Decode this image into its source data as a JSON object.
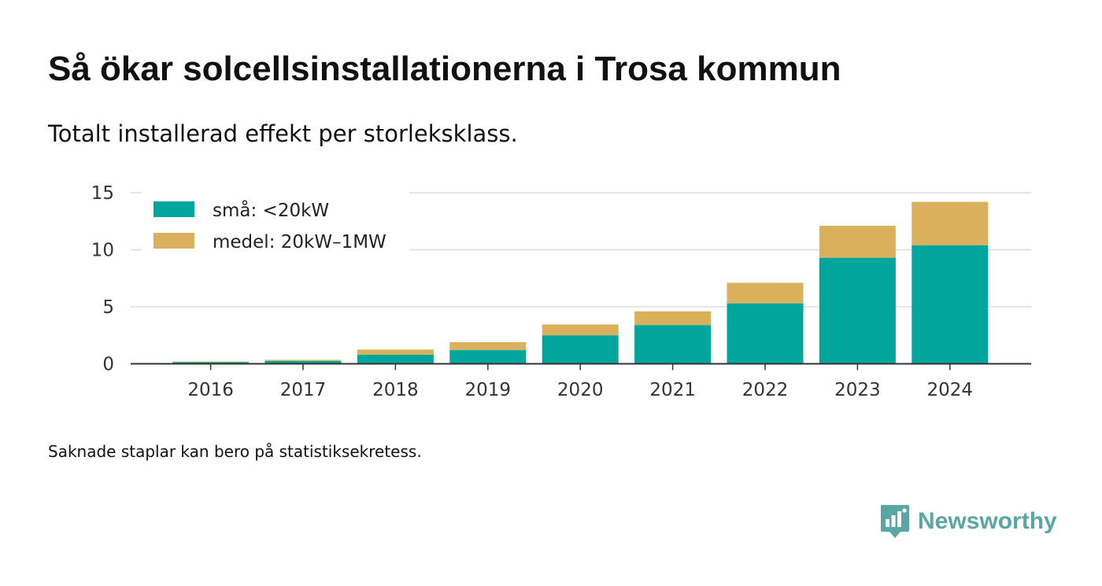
{
  "header": {
    "title": "Så ökar solcellsinstallationerna i Trosa kommun",
    "subtitle": "Totalt installerad effekt per storleksklass."
  },
  "footnote": "Saknade staplar kan bero på statistiksekretess.",
  "logo": {
    "text": "Newsworthy",
    "icon": "chart-bubble-icon",
    "color": "#5aa6a3"
  },
  "chart_data": {
    "type": "bar",
    "stacked": true,
    "categories": [
      "2016",
      "2017",
      "2018",
      "2019",
      "2020",
      "2021",
      "2022",
      "2023",
      "2024"
    ],
    "series": [
      {
        "name": "små: <20kW",
        "color": "#00a69c",
        "values": [
          0.15,
          0.25,
          0.8,
          1.2,
          2.5,
          3.4,
          5.3,
          9.3,
          10.4
        ]
      },
      {
        "name": "medel: 20kW–1MW",
        "color": "#dbb05c",
        "values": [
          0.05,
          0.1,
          0.45,
          0.7,
          0.95,
          1.2,
          1.8,
          2.8,
          3.8
        ]
      }
    ],
    "ylim": [
      0,
      15
    ],
    "yticks": [
      0,
      5,
      10,
      15
    ],
    "grid": true,
    "legend": "top-left",
    "xlabel": "",
    "ylabel": ""
  }
}
